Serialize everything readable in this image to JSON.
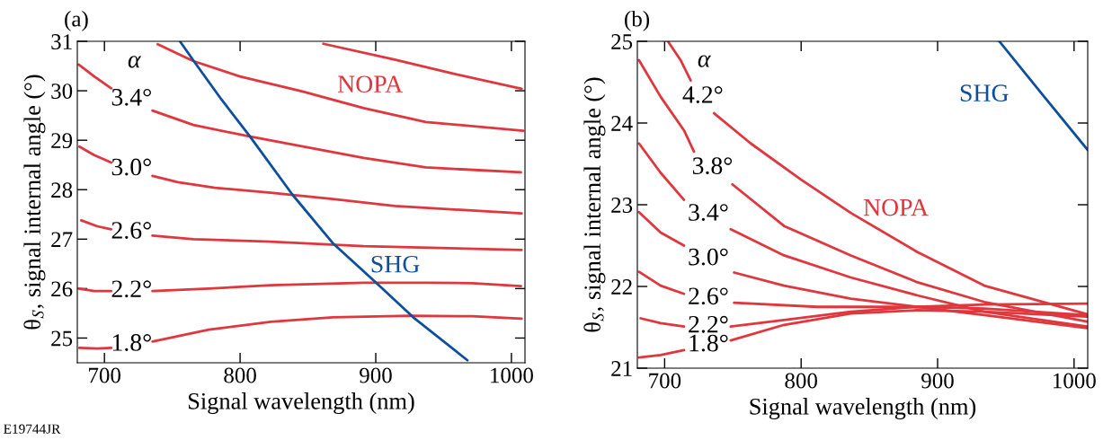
{
  "chart_data": [
    {
      "type": "line",
      "title": "(a)",
      "xlabel": "Signal wavelength (nm)",
      "ylabel": "θ$_{S}$, signal internal angle (°)",
      "xlim": [
        680,
        1010
      ],
      "xticks": [
        700,
        800,
        900,
        1000
      ],
      "ylim": [
        24.5,
        31
      ],
      "yticks": [
        25,
        26,
        27,
        28,
        29,
        30,
        31
      ],
      "grid": false,
      "legend": false,
      "series": [
        {
          "color": "#e0363d",
          "x": [
            861.4,
            913.9,
            959.6,
            1007.5
          ],
          "values": [
            30.95,
            30.63,
            30.33,
            30.04
          ]
        },
        {
          "color": "#e0363d",
          "x": [
            739.3,
            765.5,
            799.8,
            845.4,
            891.1,
            936.8,
            1008.7
          ],
          "values": [
            30.94,
            30.6,
            30.29,
            29.99,
            29.65,
            29.37,
            29.19
          ]
        },
        {
          "name": "3.4°",
          "color": "#e0363d",
          "x": [
            681,
            692.5,
            705,
            720,
            735.4,
            765.5,
            804.3,
            845.4,
            891.1,
            936.8,
            1007
          ],
          "values": [
            30.53,
            30.29,
            30.05,
            null,
            29.6,
            29.31,
            29.09,
            28.88,
            28.64,
            28.45,
            28.35
          ]
        },
        {
          "name": "3.0°",
          "color": "#e0363d",
          "x": [
            681.5,
            692.5,
            705,
            720,
            735.4,
            754.1,
            781.5,
            822.6,
            868.3,
            913.9,
            1007.5
          ],
          "values": [
            28.87,
            28.7,
            28.55,
            null,
            28.28,
            28.15,
            28.04,
            27.94,
            27.81,
            27.67,
            27.52
          ]
        },
        {
          "name": "2.6°",
          "color": "#e0363d",
          "x": [
            682.9,
            694.7,
            705,
            720,
            735.4,
            765.5,
            822.6,
            891.1,
            1007.5
          ],
          "values": [
            27.38,
            27.26,
            27.2,
            null,
            27.07,
            27.0,
            26.95,
            26.86,
            26.78
          ]
        },
        {
          "name": "2.2°",
          "color": "#e0363d",
          "x": [
            681,
            692.5,
            705,
            720,
            735.4,
            776.9,
            822.6,
            891.1,
            936.8,
            971,
            1007
          ],
          "values": [
            26.0,
            25.95,
            25.95,
            null,
            25.95,
            26.0,
            26.07,
            26.12,
            26.12,
            26.11,
            26.05
          ]
        },
        {
          "name": "1.8°",
          "color": "#e0363d",
          "x": [
            681.5,
            694.7,
            705,
            720,
            735.4,
            776.9,
            822.6,
            868.3,
            925.3,
            971,
            1007.5
          ],
          "values": [
            24.8,
            24.79,
            24.8,
            null,
            24.93,
            25.17,
            25.33,
            25.42,
            25.45,
            25.44,
            25.39
          ]
        },
        {
          "name": "SHG",
          "color": "#0b4f9e",
          "x": [
            755.9,
            766.7,
            786.1,
            806.6,
            838.6,
            868.3,
            900.2,
            927.6,
            967.6
          ],
          "values": [
            30.99,
            30.57,
            29.83,
            29.1,
            27.9,
            26.92,
            26.12,
            25.42,
            24.55
          ]
        }
      ],
      "annotations": [
        "α",
        "NOPA",
        "E19744JR"
      ]
    },
    {
      "type": "line",
      "title": "(b)",
      "xlabel": "Signal wavelength (nm)",
      "ylabel": "θ$_{S}$, signal internal angle (°)",
      "xlim": [
        680,
        1010
      ],
      "xticks": [
        700,
        800,
        900,
        1000
      ],
      "ylim": [
        21,
        25
      ],
      "yticks": [
        21,
        22,
        23,
        24,
        25
      ],
      "grid": false,
      "legend": false,
      "series": [
        {
          "name": "4.2°",
          "color": "#e0363d",
          "x": [
            702.4,
            711.7,
            719.1,
            728,
            736.2,
            763.1,
            799.8,
            836.4,
            885.3,
            934.2,
            1009.5
          ],
          "values": [
            25.0,
            24.77,
            24.52,
            null,
            24.12,
            23.75,
            23.31,
            22.9,
            22.42,
            22.01,
            21.66
          ]
        },
        {
          "name": "3.8°",
          "color": "#e0363d",
          "x": [
            681.2,
            697.1,
            714.2,
            721.5,
            735,
            749.6,
            787.5,
            836.4,
            885.3,
            934.2,
            1009.5
          ],
          "values": [
            24.77,
            24.32,
            23.91,
            23.65,
            null,
            23.25,
            22.74,
            22.38,
            22.05,
            21.81,
            21.57
          ]
        },
        {
          "name": "3.4°",
          "color": "#e0363d",
          "x": [
            681.2,
            697.1,
            714.2,
            732,
            748.4,
            787.5,
            836.4,
            885.3,
            934.2,
            1009.5
          ],
          "values": [
            23.75,
            23.39,
            23.06,
            null,
            22.7,
            22.38,
            22.11,
            21.89,
            21.69,
            21.51
          ]
        },
        {
          "name": "3.0°",
          "color": "#e0363d",
          "x": [
            681.2,
            697.1,
            714.2,
            732,
            750.9,
            787.5,
            836.4,
            885.3,
            934.2,
            1009.5
          ],
          "values": [
            22.91,
            22.66,
            22.5,
            null,
            22.17,
            22.01,
            21.85,
            21.75,
            21.65,
            21.49
          ]
        },
        {
          "name": "2.6°",
          "color": "#e0363d",
          "x": [
            681.2,
            697.1,
            714.2,
            732,
            750.9,
            812,
            885.3,
            934.2,
            1009.5
          ],
          "values": [
            22.18,
            22.01,
            21.91,
            null,
            21.8,
            21.75,
            21.75,
            21.78,
            21.79
          ]
        },
        {
          "name": "2.2°",
          "color": "#e0363d",
          "x": [
            682.4,
            697.1,
            714.2,
            732,
            748.4,
            787.5,
            836.4,
            885.3,
            934.2,
            1009.5
          ],
          "values": [
            21.61,
            21.55,
            21.51,
            null,
            21.51,
            21.59,
            21.69,
            21.75,
            21.73,
            21.65
          ]
        },
        {
          "name": "1.8°",
          "color": "#e0363d",
          "x": [
            681.2,
            697.1,
            714.2,
            732,
            748.4,
            787.5,
            836.4,
            885.3,
            934.2,
            1009.5
          ],
          "values": [
            21.13,
            21.16,
            21.22,
            null,
            21.34,
            21.53,
            21.67,
            21.71,
            21.69,
            21.63
          ]
        },
        {
          "name": "SHG",
          "color": "#0b4f9e",
          "x": [
            945.2,
            978.2,
            1010
          ],
          "values": [
            25.0,
            24.32,
            23.67
          ]
        }
      ],
      "annotations": [
        "α",
        "NOPA"
      ]
    }
  ]
}
